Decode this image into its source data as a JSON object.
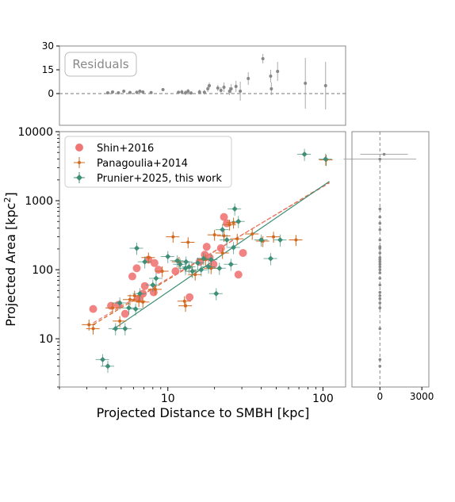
{
  "chart_data": [
    {
      "panel": "residuals",
      "type": "scatter",
      "badge": "Residuals",
      "ylim": [
        -20,
        30
      ],
      "yticks": [
        "30",
        "15",
        "0"
      ],
      "ytick_values": [
        30,
        15,
        0
      ],
      "xscale": "log",
      "xlim": [
        2,
        140
      ],
      "zero_line": true,
      "colors": {
        "points": "#888888",
        "zero_line": "#777777"
      },
      "points": [
        {
          "x": 4.1,
          "y": 0.5,
          "err": 0.8
        },
        {
          "x": 4.4,
          "y": 1.0,
          "err": 0.8
        },
        {
          "x": 4.8,
          "y": 0.5,
          "err": 0.8
        },
        {
          "x": 5.2,
          "y": 1.5,
          "err": 1.0
        },
        {
          "x": 5.7,
          "y": 0.7,
          "err": 0.8
        },
        {
          "x": 6.3,
          "y": 0.8,
          "err": 1.0
        },
        {
          "x": 6.6,
          "y": 1.5,
          "err": 1.0
        },
        {
          "x": 6.9,
          "y": 1.0,
          "err": 1.0
        },
        {
          "x": 7.8,
          "y": 0.6,
          "err": 0.8
        },
        {
          "x": 9.3,
          "y": 2.5,
          "err": 1.0
        },
        {
          "x": 11.7,
          "y": 0.8,
          "err": 1.0
        },
        {
          "x": 12.3,
          "y": 1.0,
          "err": 1.5
        },
        {
          "x": 13.0,
          "y": 0.5,
          "err": 1.5
        },
        {
          "x": 13.5,
          "y": 1.5,
          "err": 1.5
        },
        {
          "x": 14.1,
          "y": 0.4,
          "err": 1.0
        },
        {
          "x": 16.0,
          "y": 1.0,
          "err": 1.5
        },
        {
          "x": 17.2,
          "y": 0.8,
          "err": 1.5
        },
        {
          "x": 18.1,
          "y": 3.0,
          "err": 2.0
        },
        {
          "x": 18.5,
          "y": 5.0,
          "err": 2.0
        },
        {
          "x": 21.0,
          "y": 3.5,
          "err": 2.0
        },
        {
          "x": 22.0,
          "y": 2.0,
          "err": 2.0
        },
        {
          "x": 23.0,
          "y": 4.0,
          "err": 3.0
        },
        {
          "x": 25.0,
          "y": 1.5,
          "err": 2.5
        },
        {
          "x": 25.6,
          "y": 3.0,
          "err": 3.0
        },
        {
          "x": 27.5,
          "y": 4.5,
          "err": 3.5
        },
        {
          "x": 29.3,
          "y": 1.5,
          "err": 6.0
        },
        {
          "x": 33.0,
          "y": 9.5,
          "err": 4.0
        },
        {
          "x": 41.0,
          "y": 22.0,
          "err": 3.0
        },
        {
          "x": 46.0,
          "y": 11.0,
          "err": 4.0
        },
        {
          "x": 46.5,
          "y": 3.0,
          "err": 4.0
        },
        {
          "x": 51.0,
          "y": 14.0,
          "err": 6.0
        },
        {
          "x": 77.0,
          "y": 6.5,
          "err": 16.0
        },
        {
          "x": 104.0,
          "y": 5.0,
          "err": 15.0
        }
      ]
    },
    {
      "panel": "main",
      "type": "scatter",
      "xlabel": "Projected Distance to SMBH [kpc]",
      "ylabel": "Projected Area [kpc",
      "ylabel_sup": "2",
      "ylabel_end": "]",
      "xscale": "log",
      "yscale": "log",
      "xlim": [
        2,
        140
      ],
      "ylim": [
        2,
        10000
      ],
      "xticks": [
        "10",
        "100"
      ],
      "xtick_values": [
        10,
        100
      ],
      "yticks": [
        "10000",
        "1000",
        "100",
        "10"
      ],
      "ytick_values": [
        10000,
        1000,
        100,
        10
      ],
      "legend_position": "top-left",
      "series": [
        {
          "name": "Shin+2016",
          "color": "#f07676",
          "marker": "circle",
          "points": [
            {
              "x": 3.3,
              "y": 27
            },
            {
              "x": 4.3,
              "y": 30
            },
            {
              "x": 4.8,
              "y": 31
            },
            {
              "x": 5.3,
              "y": 23
            },
            {
              "x": 5.9,
              "y": 80
            },
            {
              "x": 6.3,
              "y": 105
            },
            {
              "x": 6.5,
              "y": 38
            },
            {
              "x": 6.9,
              "y": 45
            },
            {
              "x": 7.1,
              "y": 58
            },
            {
              "x": 7.5,
              "y": 140
            },
            {
              "x": 8.1,
              "y": 47
            },
            {
              "x": 8.2,
              "y": 125
            },
            {
              "x": 8.7,
              "y": 100
            },
            {
              "x": 11.2,
              "y": 95
            },
            {
              "x": 13.8,
              "y": 40
            },
            {
              "x": 16.0,
              "y": 130
            },
            {
              "x": 17.3,
              "y": 165
            },
            {
              "x": 17.8,
              "y": 215
            },
            {
              "x": 18.6,
              "y": 150
            },
            {
              "x": 19.7,
              "y": 120
            },
            {
              "x": 22.0,
              "y": 205
            },
            {
              "x": 23.0,
              "y": 580
            },
            {
              "x": 24.0,
              "y": 470
            },
            {
              "x": 28.5,
              "y": 85
            },
            {
              "x": 30.5,
              "y": 175
            }
          ]
        },
        {
          "name": "Panagoulia+2014",
          "color": "#d2691e",
          "marker": "plus",
          "points": [
            {
              "x": 3.1,
              "y": 16
            },
            {
              "x": 3.3,
              "y": 14
            },
            {
              "x": 4.4,
              "y": 28
            },
            {
              "x": 4.9,
              "y": 18
            },
            {
              "x": 5.7,
              "y": 37
            },
            {
              "x": 6.1,
              "y": 42
            },
            {
              "x": 6.5,
              "y": 35
            },
            {
              "x": 6.9,
              "y": 34
            },
            {
              "x": 7.5,
              "y": 150
            },
            {
              "x": 8.3,
              "y": 52
            },
            {
              "x": 9.2,
              "y": 95
            },
            {
              "x": 10.8,
              "y": 300
            },
            {
              "x": 11.8,
              "y": 130
            },
            {
              "x": 12.8,
              "y": 35
            },
            {
              "x": 13.0,
              "y": 30
            },
            {
              "x": 13.5,
              "y": 250
            },
            {
              "x": 14.3,
              "y": 95
            },
            {
              "x": 15.0,
              "y": 85
            },
            {
              "x": 17.5,
              "y": 140
            },
            {
              "x": 19.0,
              "y": 105
            },
            {
              "x": 20.0,
              "y": 320
            },
            {
              "x": 22.5,
              "y": 175
            },
            {
              "x": 23.0,
              "y": 310
            },
            {
              "x": 25.0,
              "y": 450
            },
            {
              "x": 26.5,
              "y": 480
            },
            {
              "x": 28.0,
              "y": 280
            },
            {
              "x": 35.0,
              "y": 330
            },
            {
              "x": 41.0,
              "y": 260
            },
            {
              "x": 48.0,
              "y": 300
            },
            {
              "x": 67.0,
              "y": 270
            },
            {
              "x": 105.0,
              "y": 3900
            }
          ]
        },
        {
          "name": "Prunier+2025, this work",
          "color": "#3f8f78",
          "marker": "diamond",
          "points": [
            {
              "x": 3.8,
              "y": 5
            },
            {
              "x": 4.1,
              "y": 4
            },
            {
              "x": 4.6,
              "y": 14
            },
            {
              "x": 4.9,
              "y": 33
            },
            {
              "x": 5.3,
              "y": 14
            },
            {
              "x": 5.6,
              "y": 28
            },
            {
              "x": 6.2,
              "y": 27
            },
            {
              "x": 6.3,
              "y": 205
            },
            {
              "x": 6.6,
              "y": 45
            },
            {
              "x": 7.1,
              "y": 130
            },
            {
              "x": 8.0,
              "y": 60
            },
            {
              "x": 8.4,
              "y": 75
            },
            {
              "x": 10.0,
              "y": 155
            },
            {
              "x": 11.5,
              "y": 135
            },
            {
              "x": 12.0,
              "y": 120
            },
            {
              "x": 13.0,
              "y": 105
            },
            {
              "x": 13.1,
              "y": 130
            },
            {
              "x": 13.7,
              "y": 110
            },
            {
              "x": 14.4,
              "y": 95
            },
            {
              "x": 15.6,
              "y": 125
            },
            {
              "x": 16.4,
              "y": 100
            },
            {
              "x": 17.0,
              "y": 145
            },
            {
              "x": 18.3,
              "y": 110
            },
            {
              "x": 19.0,
              "y": 140
            },
            {
              "x": 20.5,
              "y": 45
            },
            {
              "x": 21.5,
              "y": 105
            },
            {
              "x": 22.5,
              "y": 380
            },
            {
              "x": 24.0,
              "y": 270
            },
            {
              "x": 25.5,
              "y": 120
            },
            {
              "x": 26.5,
              "y": 210
            },
            {
              "x": 27.0,
              "y": 760
            },
            {
              "x": 28.5,
              "y": 500
            },
            {
              "x": 40.0,
              "y": 270
            },
            {
              "x": 46.0,
              "y": 145
            },
            {
              "x": 53.0,
              "y": 270
            },
            {
              "x": 76.0,
              "y": 4700
            },
            {
              "x": 104.0,
              "y": 4000
            }
          ]
        }
      ],
      "fits": [
        {
          "series": "Panagoulia+2014",
          "color": "#d2691e",
          "style": "dashed",
          "x": [
            3.3,
            110
          ],
          "y": [
            16,
            1850
          ]
        },
        {
          "series": "Shin+2016",
          "color": "#f07676",
          "style": "dashed",
          "x": [
            3.3,
            110
          ],
          "y": [
            17,
            1800
          ]
        },
        {
          "series": "Prunier+2025, this work",
          "color": "#3f8f78",
          "style": "solid",
          "x": [
            4.4,
            110
          ],
          "y": [
            13.5,
            1900
          ]
        }
      ]
    },
    {
      "panel": "side",
      "type": "scatter",
      "xlim": [
        -2000,
        3500
      ],
      "xticks": [
        "0",
        "3000"
      ],
      "xtick_values": [
        0,
        3000
      ],
      "yscale": "log",
      "ylim": [
        2,
        10000
      ],
      "zero_line": true,
      "colors": {
        "points": "#888888",
        "zero_line": "#888888"
      },
      "points": [
        {
          "x": 300,
          "y": 4700,
          "err": 1700
        },
        {
          "x": 0,
          "y": 4000,
          "err": 2600
        },
        {
          "x": 0,
          "y": 760,
          "err": 0
        },
        {
          "x": 0,
          "y": 580,
          "err": 0
        },
        {
          "x": 0,
          "y": 470,
          "err": 0
        },
        {
          "x": 0,
          "y": 380,
          "err": 0
        },
        {
          "x": 0,
          "y": 270,
          "err": 0
        },
        {
          "x": 0,
          "y": 215,
          "err": 0
        },
        {
          "x": 0,
          "y": 205,
          "err": 0
        },
        {
          "x": 0,
          "y": 175,
          "err": 0
        },
        {
          "x": 0,
          "y": 150,
          "err": 0
        },
        {
          "x": 0,
          "y": 140,
          "err": 0
        },
        {
          "x": 0,
          "y": 130,
          "err": 0
        },
        {
          "x": 0,
          "y": 120,
          "err": 0
        },
        {
          "x": 0,
          "y": 110,
          "err": 0
        },
        {
          "x": 0,
          "y": 100,
          "err": 0
        },
        {
          "x": 0,
          "y": 90,
          "err": 0
        },
        {
          "x": 0,
          "y": 75,
          "err": 0
        },
        {
          "x": 0,
          "y": 60,
          "err": 0
        },
        {
          "x": 0,
          "y": 47,
          "err": 0
        },
        {
          "x": 0,
          "y": 42,
          "err": 0
        },
        {
          "x": 0,
          "y": 38,
          "err": 0
        },
        {
          "x": 0,
          "y": 33,
          "err": 0
        },
        {
          "x": 0,
          "y": 28,
          "err": 0
        },
        {
          "x": 0,
          "y": 14,
          "err": 0
        },
        {
          "x": 0,
          "y": 5,
          "err": 0
        },
        {
          "x": 0,
          "y": 4,
          "err": 0
        }
      ]
    }
  ]
}
